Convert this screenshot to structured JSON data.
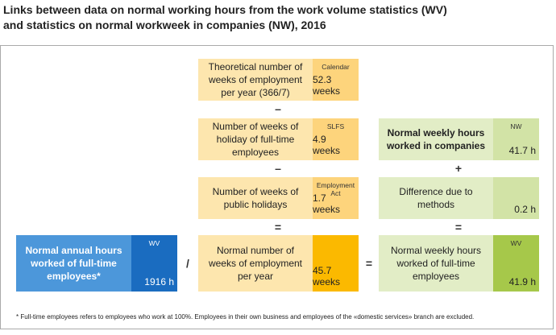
{
  "title": {
    "line1": "Links between data on normal working hours from the work volume statistics (WV)",
    "line2": "and statistics on normal workweek in companies (NW), 2016"
  },
  "weeks_column": [
    {
      "label": "Theoretical number of weeks of employment per year (366/7)",
      "source": "Calendar",
      "value": "52.3 weeks"
    },
    {
      "label": "Number of weeks of holiday of full-time employees",
      "source": "SLFS",
      "value": "4.9 weeks"
    },
    {
      "label": "Number of weeks of public holidays",
      "source": "Employment Act",
      "value": "1.7 weeks"
    },
    {
      "label": "Normal number of weeks of employment per year",
      "value": "45.7 weeks"
    }
  ],
  "weeks_operators": [
    "–",
    "–",
    "="
  ],
  "hours_column": [
    {
      "label": "Normal weekly hours worked in companies",
      "source": "NW",
      "value": "41.7 h"
    },
    {
      "label": "Difference due to methods",
      "value": "0.2 h"
    },
    {
      "label": "Normal weekly hours worked of full-time employees",
      "source": "WV",
      "value": "41.9 h"
    }
  ],
  "hours_operators": [
    "+",
    "="
  ],
  "annual_box": {
    "label": "Normal annual hours worked of full-time employees*",
    "source": "WV",
    "value": "1916 h"
  },
  "equation_operators": [
    "/",
    "="
  ],
  "footnote": "* Full-time employees refers to employees who work at 100%. Employees in their own business and employees of the «domestic services» branch are excluded."
}
